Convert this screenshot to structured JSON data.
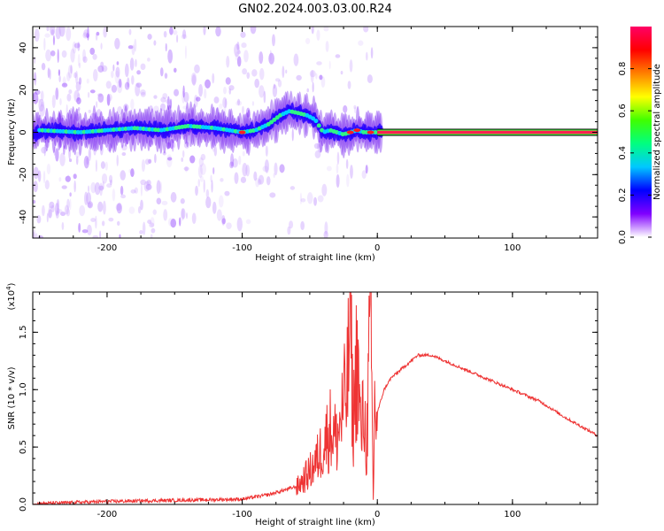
{
  "figure_title": "GN02.2024.003.03.00.R24",
  "chart_data": [
    {
      "type": "heatmap",
      "title": "",
      "xlabel": "Height of straight line (km)",
      "ylabel": "Frequency (Hz)",
      "xlim": [
        -255,
        163
      ],
      "ylim": [
        -50,
        50
      ],
      "x_ticks": [
        -200,
        -100,
        0,
        100
      ],
      "y_ticks": [
        -40,
        -20,
        0,
        20,
        40
      ],
      "grid": false,
      "colorbar": {
        "label": "Normalized spectral amplitude",
        "range": [
          0,
          1
        ],
        "ticks": [
          "0.0",
          "0.2",
          "0.4",
          "0.6",
          "0.8"
        ],
        "colormap": "rainbow",
        "colors": [
          "#ffffff",
          "#8000ff",
          "#0000ff",
          "#00c8ff",
          "#00ff80",
          "#40ff00",
          "#ffff00",
          "#ff8000",
          "#ff0000",
          "#ff0066"
        ]
      },
      "ridge": {
        "x": [
          -250,
          -220,
          -200,
          -180,
          -160,
          -140,
          -120,
          -100,
          -90,
          -80,
          -72,
          -65,
          -58,
          -52,
          -46,
          -40,
          -35,
          -30,
          -25,
          -20,
          -15,
          -10,
          -5,
          0,
          163
        ],
        "y": [
          1,
          0,
          1,
          2,
          1,
          3,
          2,
          0,
          1,
          4,
          8,
          10,
          9,
          8,
          6,
          0,
          1,
          0,
          -1,
          0,
          1,
          0,
          0,
          0,
          0
        ]
      }
    },
    {
      "type": "line",
      "title": "",
      "xlabel": "Height of straight line (km)",
      "ylabel": "SNR (10 * v/v)",
      "yscale_note": "(x10",
      "yscale_exp": "4",
      "xlim": [
        -255,
        163
      ],
      "ylim": [
        0,
        1.85
      ],
      "x_ticks": [
        -200,
        -100,
        0,
        100
      ],
      "y_ticks": [
        "0.0",
        "0.5",
        "1.0",
        "1.5"
      ],
      "grid": false,
      "color": "#ee3333",
      "series": [
        {
          "x": [
            -255,
            -200,
            -150,
            -100,
            -80,
            -60,
            -50,
            -45,
            -40,
            -35,
            -30,
            -25,
            -22,
            -20,
            -18,
            -15,
            -12,
            -10,
            -8,
            -5,
            -3,
            -2,
            0,
            5,
            10,
            20,
            30,
            40,
            60,
            80,
            100,
            120,
            140,
            163
          ],
          "y": [
            0.0,
            0.02,
            0.03,
            0.04,
            0.08,
            0.15,
            0.3,
            0.4,
            0.55,
            0.7,
            0.6,
            0.9,
            1.1,
            1.85,
            0.7,
            1.4,
            0.6,
            0.9,
            0.5,
            1.75,
            0.05,
            0.9,
            0.8,
            1.0,
            1.1,
            1.2,
            1.3,
            1.3,
            1.2,
            1.1,
            1.0,
            0.9,
            0.75,
            0.6
          ]
        }
      ]
    }
  ]
}
